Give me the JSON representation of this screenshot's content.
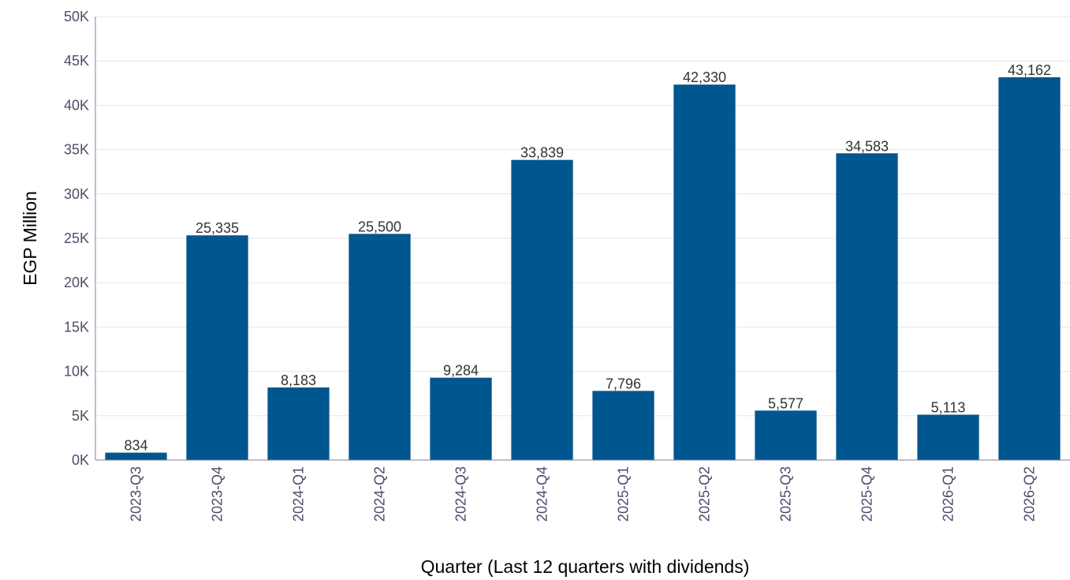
{
  "chart_data": {
    "type": "bar",
    "categories": [
      "2023-Q3",
      "2023-Q4",
      "2024-Q1",
      "2024-Q2",
      "2024-Q3",
      "2024-Q4",
      "2025-Q1",
      "2025-Q2",
      "2025-Q3",
      "2025-Q4",
      "2026-Q1",
      "2026-Q2"
    ],
    "values": [
      834,
      25335,
      8183,
      25500,
      9284,
      33839,
      7796,
      42330,
      5577,
      34583,
      5113,
      43162
    ],
    "value_labels": [
      "834",
      "25,335",
      "8,183",
      "25,500",
      "9,284",
      "33,839",
      "7,796",
      "42,330",
      "5,577",
      "34,583",
      "5,113",
      "43,162"
    ],
    "xlabel": "Quarter (Last 12 quarters with dividends)",
    "ylabel": "EGP Million",
    "ylim": [
      0,
      50000
    ],
    "yticks": [
      0,
      5000,
      10000,
      15000,
      20000,
      25000,
      30000,
      35000,
      40000,
      45000,
      50000
    ],
    "ytick_labels": [
      "0K",
      "5K",
      "10K",
      "15K",
      "20K",
      "25K",
      "30K",
      "35K",
      "40K",
      "45K",
      "50K"
    ],
    "grid": true,
    "legend": false,
    "bar_color": "#00568f"
  }
}
